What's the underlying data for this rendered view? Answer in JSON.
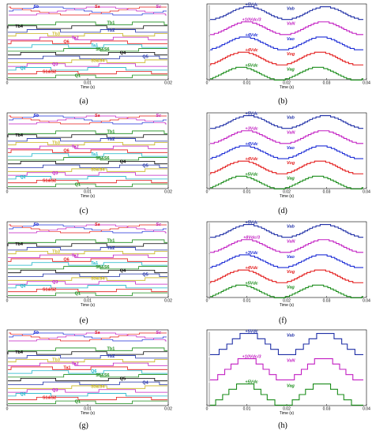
{
  "figure": {
    "panels": [
      {
        "id": "a",
        "caption": "(a)",
        "kind": "switching",
        "xticks": [
          "0",
          "0.01",
          "0.02"
        ],
        "xlabel": "Time (s)",
        "top_labels": [
          "Sb",
          "Sa",
          "Sc"
        ],
        "signal_labels": [
          "Tb1",
          "Tb4",
          "Tb2",
          "Tb3",
          "Ta2",
          "Q6",
          "Ta1",
          "S5&S6",
          "Q4",
          "Q5",
          "S3&S4",
          "Q3",
          "Q2",
          "S1&S2",
          "Q1"
        ]
      },
      {
        "id": "b",
        "caption": "(b)",
        "kind": "voltage",
        "xticks": [
          "0",
          "0.01",
          "0.02",
          "0.03",
          "0.04"
        ],
        "xlabel": "Time (s)",
        "traces": [
          {
            "amp": "+5Vdc",
            "name": "Vab",
            "color": "#1f2fa6"
          },
          {
            "amp": "+10Vdc/3",
            "name": "VaN",
            "color": "#c21fc2"
          },
          {
            "amp": "+4Vdc",
            "name": "Vao",
            "color": "#1f2fd6"
          },
          {
            "amp": "+4Vdc",
            "name": "Vog",
            "color": "#e31a1a"
          },
          {
            "amp": "+5Vdc",
            "name": "Vag",
            "color": "#1a8c1a"
          }
        ]
      },
      {
        "id": "c",
        "caption": "(c)",
        "kind": "switching",
        "xticks": [
          "0",
          "0.01",
          "0.02"
        ],
        "xlabel": "Time (s)",
        "top_labels": [
          "Sb",
          "Sa",
          "Sc"
        ],
        "signal_labels": [
          "Tb1",
          "Tb4",
          "Tb2",
          "Tb3",
          "Ta2",
          "Q6",
          "Ta1",
          "S5&S6",
          "Q4",
          "Q5",
          "S3&S4",
          "Q3",
          "Q2",
          "S1&S2",
          "Q1"
        ]
      },
      {
        "id": "d",
        "caption": "(d)",
        "kind": "voltage",
        "xticks": [
          "0",
          "0.01",
          "0.02",
          "0.03",
          "0.04"
        ],
        "xlabel": "Time (s)",
        "traces": [
          {
            "amp": "+5Vdc",
            "name": "Vab",
            "color": "#1f2fa6"
          },
          {
            "amp": "+3Vdc",
            "name": "VaN",
            "color": "#c21fc2"
          },
          {
            "amp": "+4Vdc",
            "name": "Vao",
            "color": "#1f2fd6"
          },
          {
            "amp": "+4Vdc",
            "name": "Vog",
            "color": "#e31a1a"
          },
          {
            "amp": "+5Vdc",
            "name": "Vag",
            "color": "#1a8c1a"
          }
        ]
      },
      {
        "id": "e",
        "caption": "(e)",
        "kind": "switching",
        "xticks": [
          "0",
          "0.01",
          "0.02"
        ],
        "xlabel": "Time (s)",
        "top_labels": [
          "Sb",
          "Sa",
          "Sc"
        ],
        "signal_labels": [
          "Tb1",
          "Tb4",
          "Tb2",
          "Tb3",
          "Ta2",
          "Q6",
          "Ta1",
          "S5&S6",
          "Q4",
          "Q5",
          "S3&S4",
          "Q3",
          "Q2",
          "S1&S2",
          "Q1"
        ]
      },
      {
        "id": "f",
        "caption": "(f)",
        "kind": "voltage",
        "xticks": [
          "0",
          "0.01",
          "0.02",
          "0.03",
          "0.04"
        ],
        "xlabel": "Time (s)",
        "traces": [
          {
            "amp": "+5Vdc",
            "name": "Vab",
            "color": "#1f2fa6"
          },
          {
            "amp": "+8Vdc/3",
            "name": "VaN",
            "color": "#c21fc2"
          },
          {
            "amp": "+3Vdc",
            "name": "Vao",
            "color": "#1f2fd6"
          },
          {
            "amp": "+4Vdc",
            "name": "Vog",
            "color": "#e31a1a"
          },
          {
            "amp": "+5Vdc",
            "name": "Vag",
            "color": "#1a8c1a"
          }
        ]
      },
      {
        "id": "g",
        "caption": "(g)",
        "kind": "switching",
        "xticks": [
          "0",
          "0.01",
          "0.02"
        ],
        "xlabel": "Time (s)",
        "top_labels": [
          "Sb",
          "Sa",
          "Sc"
        ],
        "signal_labels": [
          "Tb1",
          "Tb4",
          "Tb2",
          "Tb3",
          "Ta2",
          "Ta1",
          "Q6",
          "S5&S6",
          "Q5",
          "Q4",
          "S3&S4",
          "Q3",
          "Q2",
          "S1&S2",
          "Q1"
        ]
      },
      {
        "id": "h",
        "caption": "(h)",
        "kind": "voltage",
        "xticks": [
          "0",
          "0.01",
          "0.02",
          "0.03",
          "0.04"
        ],
        "xlabel": "Time (s)",
        "traces": [
          {
            "amp": "+5Vdc",
            "name": "Vab",
            "color": "#1f2fa6"
          },
          {
            "amp": "+10Vdc/3",
            "name": "VaN",
            "color": "#c21fc2"
          },
          {
            "amp": "+5Vdc",
            "name": "Vag",
            "color": "#1a8c1a"
          }
        ]
      }
    ],
    "colors": {
      "blue": "#1f2fd6",
      "red": "#e31a1a",
      "magenta": "#c21fc2",
      "green": "#1a8c1a",
      "black": "#000000",
      "cyan": "#18b4c8",
      "yellow": "#c8b41e",
      "navy": "#1f2fa6"
    }
  }
}
